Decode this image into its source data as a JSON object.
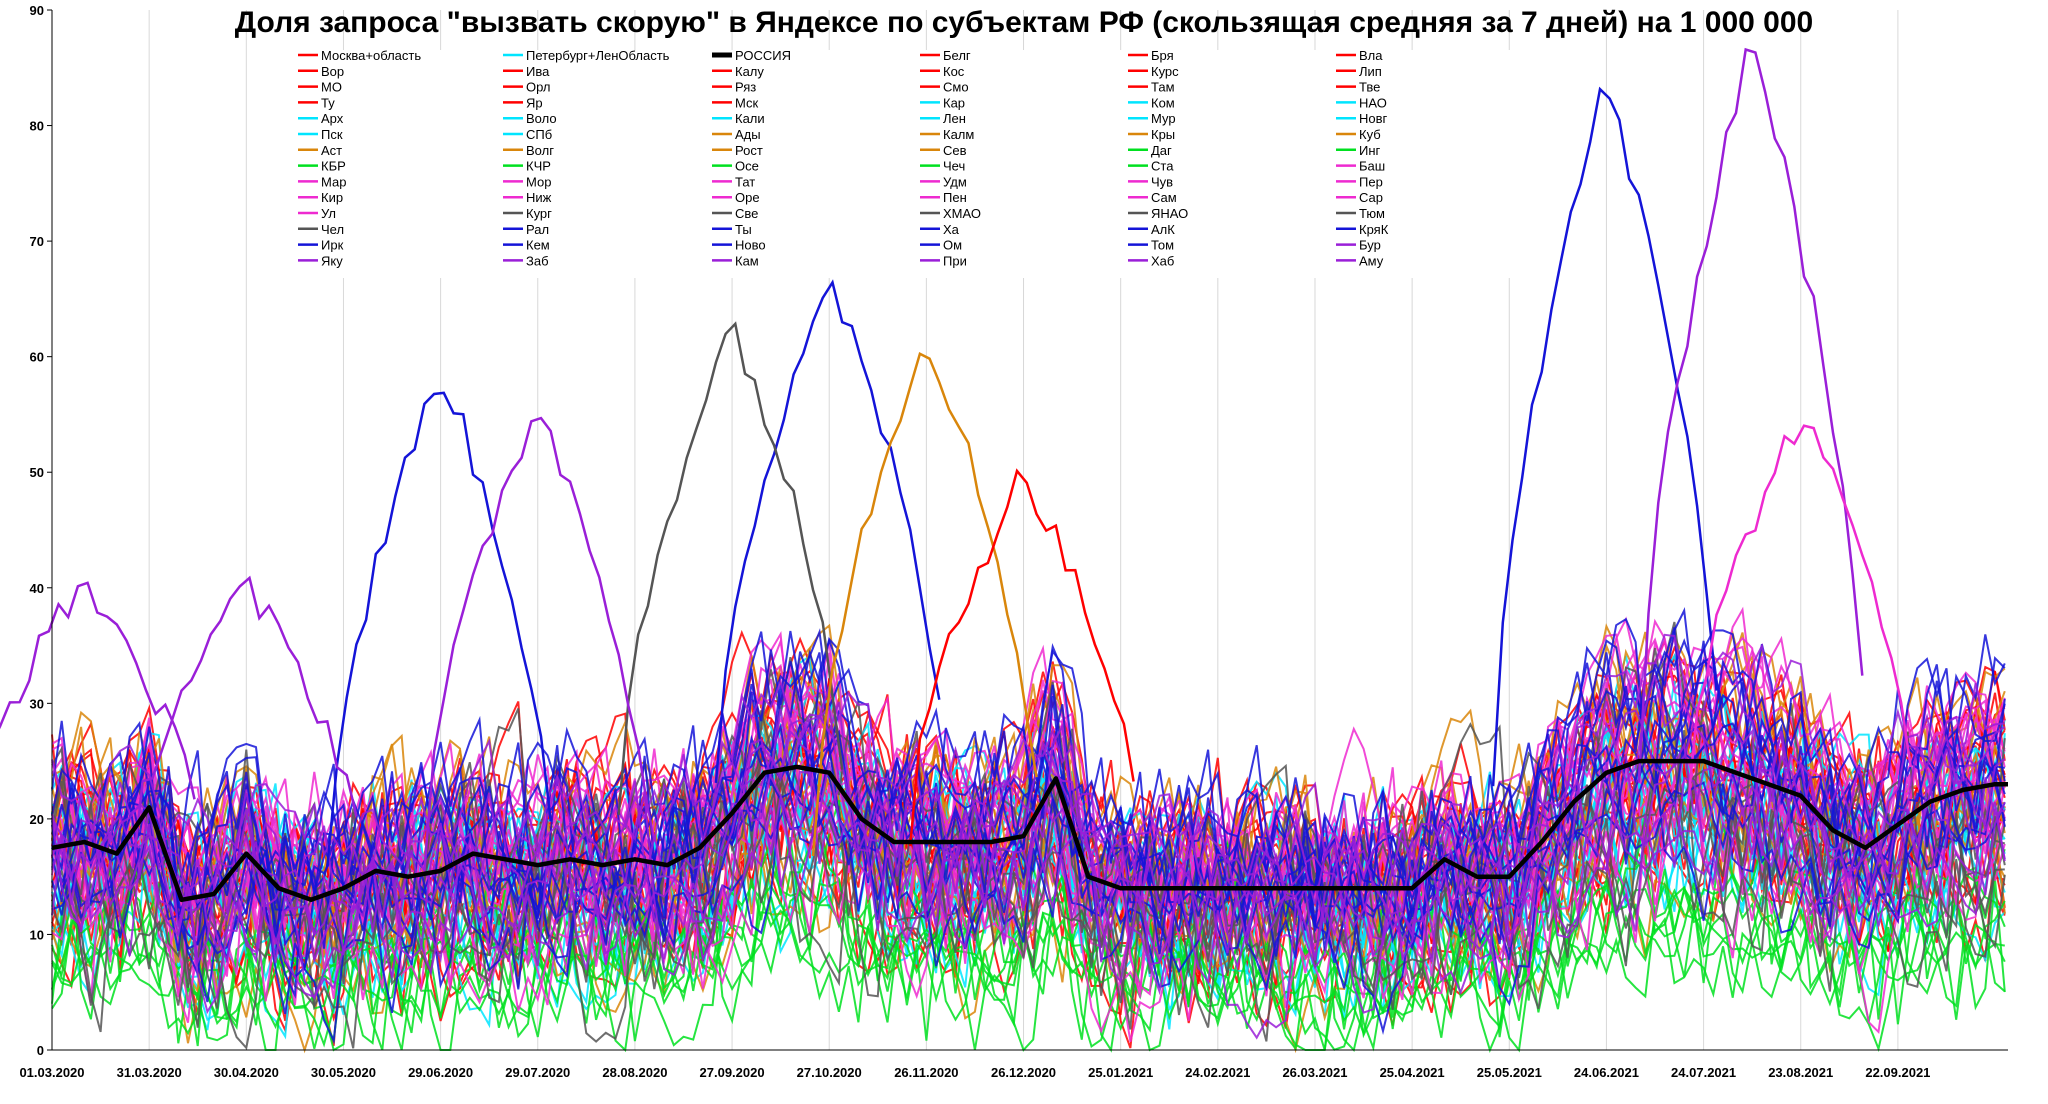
{
  "chart_data": {
    "type": "line",
    "title": "Доля запроса \"вызвать скорую\" в Яндексе по субъектам РФ (скользящая средняя за 7 дней) на 1 000 000",
    "xlabel": "",
    "ylabel": "",
    "ylim": [
      0,
      90
    ],
    "yticks": [
      0,
      10,
      20,
      30,
      40,
      50,
      60,
      70,
      80,
      90
    ],
    "xlim": [
      "01.03.2020",
      "26.10.2021"
    ],
    "xticks": [
      "01.03.2020",
      "31.03.2020",
      "30.04.2020",
      "30.05.2020",
      "29.06.2020",
      "29.07.2020",
      "28.08.2020",
      "27.09.2020",
      "27.10.2020",
      "26.11.2020",
      "26.12.2020",
      "25.01.2021",
      "24.02.2021",
      "26.03.2021",
      "25.04.2021",
      "25.05.2021",
      "24.06.2021",
      "24.07.2021",
      "23.08.2021",
      "22.09.2021"
    ],
    "grid": "vertical",
    "legend_placement": "top",
    "legend": [
      {
        "name": "Москва+область",
        "color": "#ff0000"
      },
      {
        "name": "Петербург+ЛенОбласть",
        "color": "#00e5ff"
      },
      {
        "name": "РОССИЯ",
        "color": "#000000",
        "bold": true
      },
      {
        "name": "Белг",
        "color": "#ff0000"
      },
      {
        "name": "Бря",
        "color": "#ff0000"
      },
      {
        "name": "Вла",
        "color": "#ff0000"
      },
      {
        "name": "Вор",
        "color": "#ff0000"
      },
      {
        "name": "Ива",
        "color": "#ff0000"
      },
      {
        "name": "Калу",
        "color": "#ff0000"
      },
      {
        "name": "Кос",
        "color": "#ff0000"
      },
      {
        "name": "Курс",
        "color": "#ff0000"
      },
      {
        "name": "Лип",
        "color": "#ff0000"
      },
      {
        "name": "МО",
        "color": "#ff0000"
      },
      {
        "name": "Орл",
        "color": "#ff0000"
      },
      {
        "name": "Ряз",
        "color": "#ff0000"
      },
      {
        "name": "Смо",
        "color": "#ff0000"
      },
      {
        "name": "Там",
        "color": "#ff0000"
      },
      {
        "name": "Тве",
        "color": "#ff0000"
      },
      {
        "name": "Ту",
        "color": "#ff0000"
      },
      {
        "name": "Яр",
        "color": "#ff0000"
      },
      {
        "name": "Мск",
        "color": "#ff0000"
      },
      {
        "name": "Кар",
        "color": "#00e5ff"
      },
      {
        "name": "Ком",
        "color": "#00e5ff"
      },
      {
        "name": "НАО",
        "color": "#00e5ff"
      },
      {
        "name": "Арх",
        "color": "#00e5ff"
      },
      {
        "name": "Воло",
        "color": "#00e5ff"
      },
      {
        "name": "Кали",
        "color": "#00e5ff"
      },
      {
        "name": "Лен",
        "color": "#00e5ff"
      },
      {
        "name": "Мур",
        "color": "#00e5ff"
      },
      {
        "name": "Новг",
        "color": "#00e5ff"
      },
      {
        "name": "Пск",
        "color": "#00e5ff"
      },
      {
        "name": "СПб",
        "color": "#00e5ff"
      },
      {
        "name": "Ады",
        "color": "#d9860b"
      },
      {
        "name": "Калм",
        "color": "#d9860b"
      },
      {
        "name": "Кры",
        "color": "#d9860b"
      },
      {
        "name": "Куб",
        "color": "#d9860b"
      },
      {
        "name": "Аст",
        "color": "#d9860b"
      },
      {
        "name": "Волг",
        "color": "#d9860b"
      },
      {
        "name": "Рост",
        "color": "#d9860b"
      },
      {
        "name": "Сев",
        "color": "#d9860b"
      },
      {
        "name": "Даг",
        "color": "#00e020"
      },
      {
        "name": "Инг",
        "color": "#00e020"
      },
      {
        "name": "КБР",
        "color": "#00e020"
      },
      {
        "name": "КЧР",
        "color": "#00e020"
      },
      {
        "name": "Осе",
        "color": "#00e020"
      },
      {
        "name": "Чеч",
        "color": "#00e020"
      },
      {
        "name": "Ста",
        "color": "#00e020"
      },
      {
        "name": "Баш",
        "color": "#ee2ad0"
      },
      {
        "name": "Мар",
        "color": "#ee2ad0"
      },
      {
        "name": "Мор",
        "color": "#ee2ad0"
      },
      {
        "name": "Тат",
        "color": "#ee2ad0"
      },
      {
        "name": "Удм",
        "color": "#ee2ad0"
      },
      {
        "name": "Чув",
        "color": "#ee2ad0"
      },
      {
        "name": "Пер",
        "color": "#ee2ad0"
      },
      {
        "name": "Кир",
        "color": "#ee2ad0"
      },
      {
        "name": "Ниж",
        "color": "#ee2ad0"
      },
      {
        "name": "Оре",
        "color": "#ee2ad0"
      },
      {
        "name": "Пен",
        "color": "#ee2ad0"
      },
      {
        "name": "Сам",
        "color": "#ee2ad0"
      },
      {
        "name": "Сар",
        "color": "#ee2ad0"
      },
      {
        "name": "Ул",
        "color": "#ee2ad0"
      },
      {
        "name": "Кург",
        "color": "#555555"
      },
      {
        "name": "Све",
        "color": "#555555"
      },
      {
        "name": "ХМАО",
        "color": "#555555"
      },
      {
        "name": "ЯНАО",
        "color": "#555555"
      },
      {
        "name": "Тюм",
        "color": "#555555"
      },
      {
        "name": "Чел",
        "color": "#555555"
      },
      {
        "name": "Рал",
        "color": "#1414d8"
      },
      {
        "name": "Ты",
        "color": "#1414d8"
      },
      {
        "name": "Ха",
        "color": "#1414d8"
      },
      {
        "name": "АлК",
        "color": "#1414d8"
      },
      {
        "name": "КряК",
        "color": "#1414d8"
      },
      {
        "name": "Ирк",
        "color": "#1414d8"
      },
      {
        "name": "Кем",
        "color": "#1414d8"
      },
      {
        "name": "Ново",
        "color": "#1414d8"
      },
      {
        "name": "Ом",
        "color": "#1414d8"
      },
      {
        "name": "Том",
        "color": "#1414d8"
      },
      {
        "name": "Бур",
        "color": "#9a1fd8"
      },
      {
        "name": "Яку",
        "color": "#9a1fd8"
      },
      {
        "name": "Заб",
        "color": "#9a1fd8"
      },
      {
        "name": "Кам",
        "color": "#9a1fd8"
      },
      {
        "name": "При",
        "color": "#9a1fd8"
      },
      {
        "name": "Хаб",
        "color": "#9a1fd8"
      },
      {
        "name": "Аму",
        "color": "#9a1fd8"
      }
    ],
    "series": [
      {
        "name": "РОССИЯ",
        "color": "#000000",
        "x": [
          "01.03.2020",
          "11.03.2020",
          "21.03.2020",
          "31.03.2020",
          "10.04.2020",
          "20.04.2020",
          "30.04.2020",
          "10.05.2020",
          "20.05.2020",
          "30.05.2020",
          "09.06.2020",
          "19.06.2020",
          "29.06.2020",
          "09.07.2020",
          "19.07.2020",
          "29.07.2020",
          "08.08.2020",
          "18.08.2020",
          "28.08.2020",
          "07.09.2020",
          "17.09.2020",
          "27.09.2020",
          "07.10.2020",
          "17.10.2020",
          "27.10.2020",
          "06.11.2020",
          "16.11.2020",
          "26.11.2020",
          "06.12.2020",
          "16.12.2020",
          "26.12.2020",
          "05.01.2021",
          "15.01.2021",
          "25.01.2021",
          "04.02.2021",
          "14.02.2021",
          "24.02.2021",
          "06.03.2021",
          "16.03.2021",
          "26.03.2021",
          "05.04.2021",
          "15.04.2021",
          "25.04.2021",
          "05.05.2021",
          "15.05.2021",
          "25.05.2021",
          "04.06.2021",
          "14.06.2021",
          "24.06.2021",
          "04.07.2021",
          "14.07.2021",
          "24.07.2021",
          "03.08.2021",
          "13.08.2021",
          "23.08.2021",
          "02.09.2021",
          "12.09.2021",
          "22.09.2021",
          "02.10.2021",
          "12.10.2021",
          "22.10.2021",
          "26.10.2021"
        ],
        "values": [
          17.5,
          18.0,
          17.0,
          21.0,
          13.0,
          13.5,
          17.0,
          14.0,
          13.0,
          14.0,
          15.5,
          15.0,
          15.5,
          17.0,
          16.5,
          16.0,
          16.5,
          16.0,
          16.5,
          16.0,
          17.5,
          20.5,
          24.0,
          24.5,
          24.0,
          20.0,
          18.0,
          18.0,
          18.0,
          18.0,
          18.5,
          23.5,
          15.0,
          14.0,
          14.0,
          14.0,
          14.0,
          14.0,
          14.0,
          14.0,
          14.0,
          14.0,
          14.0,
          16.5,
          15.0,
          15.0,
          18.0,
          21.5,
          24.0,
          25.0,
          25.0,
          25.0,
          24.0,
          23.0,
          22.0,
          19.0,
          17.5,
          19.5,
          21.5,
          22.5,
          23.0,
          23.0
        ]
      }
    ],
    "notes_visible_peaks": [
      {
        "region_color": "#1414d8",
        "x": "24.06.2021",
        "y": 84
      },
      {
        "region_color": "#9a1fd8",
        "x": "08.08.2021",
        "y": 88
      },
      {
        "region_color": "#1414d8",
        "x": "27.10.2020",
        "y": 67
      },
      {
        "region_color": "#555555",
        "x": "27.09.2020",
        "y": 63
      },
      {
        "region_color": "#d9860b",
        "x": "26.11.2020",
        "y": 62
      },
      {
        "region_color": "#1414d8",
        "x": "29.06.2020",
        "y": 59
      },
      {
        "region_color": "#9a1fd8",
        "x": "29.07.2020",
        "y": 56
      },
      {
        "region_color": "#ee2ad0",
        "x": "23.08.2021",
        "y": 55
      },
      {
        "region_color": "#ff0000",
        "x": "26.12.2020",
        "y": 50
      },
      {
        "region_color": "#9a1fd8",
        "x": "11.03.2020",
        "y": 40.5
      },
      {
        "region_color": "#9a1fd8",
        "x": "30.04.2020",
        "y": 40
      }
    ]
  }
}
